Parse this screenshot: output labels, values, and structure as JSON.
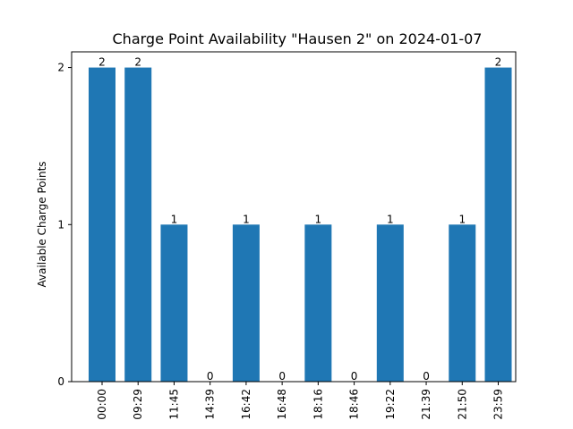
{
  "chart_data": {
    "type": "bar",
    "title": "Charge Point Availability \"Hausen 2\" on 2024-01-07",
    "xlabel": "",
    "ylabel": "Available Charge Points",
    "categories": [
      "00:00",
      "09:29",
      "11:45",
      "14:39",
      "16:42",
      "16:48",
      "18:16",
      "18:46",
      "19:22",
      "21:39",
      "21:50",
      "23:59"
    ],
    "values": [
      2,
      2,
      1,
      0,
      1,
      0,
      1,
      0,
      1,
      0,
      1,
      2
    ],
    "yticks": [
      0,
      1,
      2
    ],
    "ylim": [
      0,
      2.1
    ],
    "bar_color": "#1f77b4",
    "grid": false,
    "legend": "none",
    "data_labels": true,
    "x_tick_rotation": "vertical"
  }
}
